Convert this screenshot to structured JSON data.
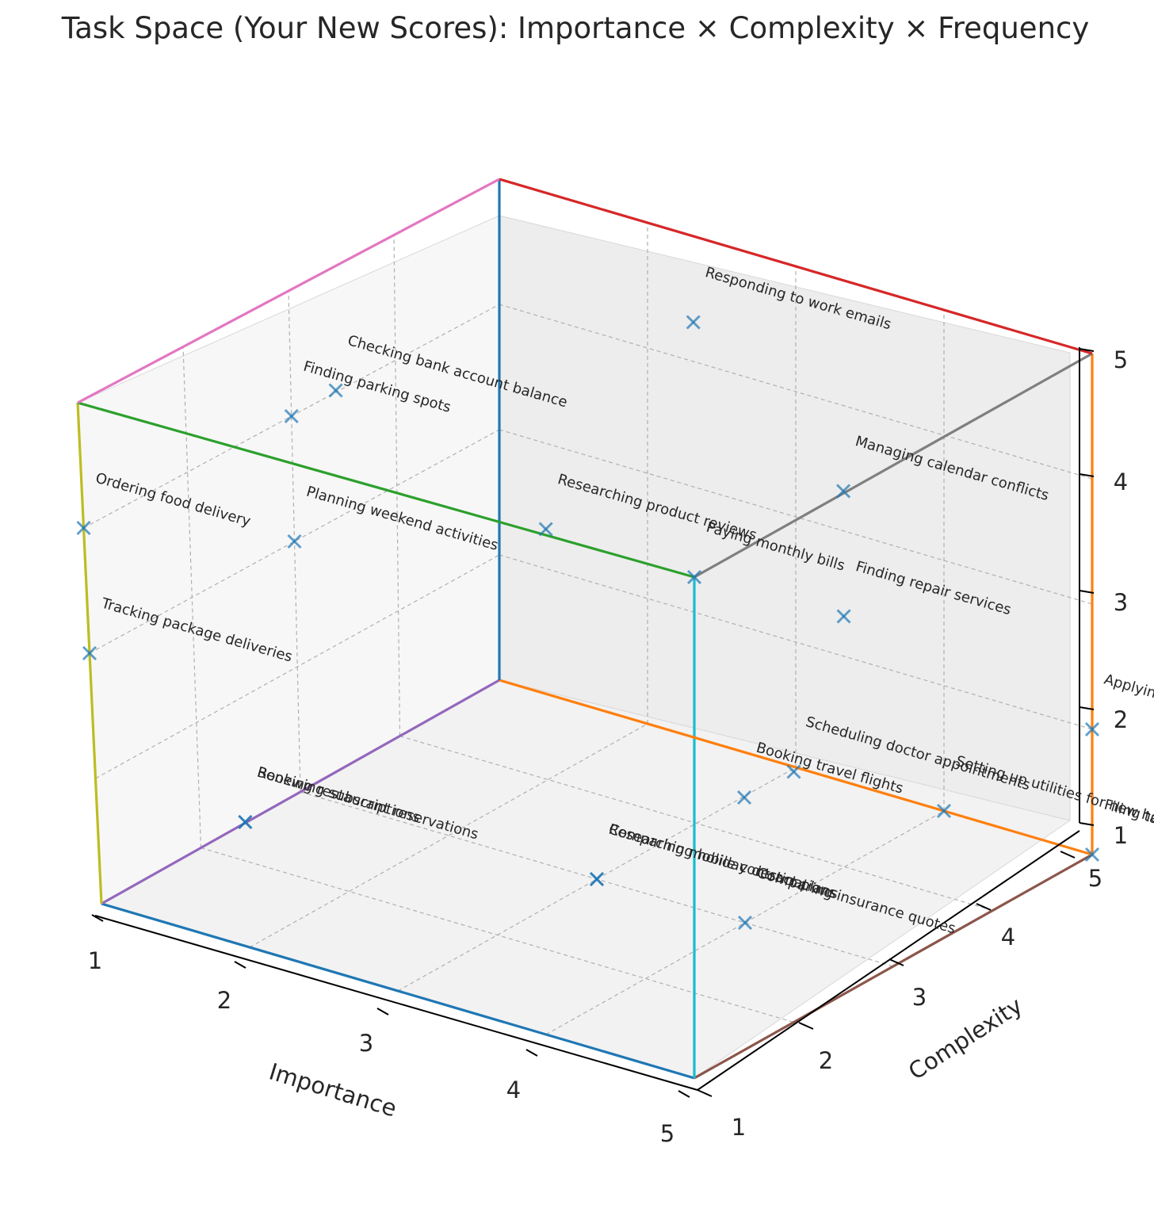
{
  "chart_data": {
    "type": "scatter",
    "title": "Task Space (Your New Scores): Importance × Complexity × Frequency",
    "xlabel": "Importance",
    "ylabel": "Complexity",
    "zlabel": "",
    "xlim": [
      1,
      5
    ],
    "ylim": [
      1,
      5
    ],
    "zlim": [
      1,
      5
    ],
    "x_ticks": [
      "1",
      "2",
      "3",
      "4",
      "5"
    ],
    "y_ticks": [
      "1",
      "2",
      "3",
      "4",
      "5"
    ],
    "z_ticks": [
      "1",
      "2",
      "3",
      "4",
      "5"
    ],
    "grid": true,
    "marker": "x",
    "marker_color": "#1f77b4",
    "points": [
      {
        "label": "Responding to work emails",
        "x": 3,
        "y": 4,
        "z": 5
      },
      {
        "label": "Checking bank account balance",
        "x": 2,
        "y": 2,
        "z": 5
      },
      {
        "label": "Managing calendar conflicts",
        "x": 4,
        "y": 4,
        "z": 4
      },
      {
        "label": "Finding parking spots",
        "x": 1,
        "y": 3,
        "z": 4
      },
      {
        "label": "Ordering food delivery",
        "x": 1,
        "y": 1,
        "z": 4
      },
      {
        "label": "Paying monthly bills",
        "x": 5,
        "y": 1,
        "z": 5
      },
      {
        "label": "Planning weekend activities",
        "x": 1,
        "y": 3,
        "z": 3
      },
      {
        "label": "Researching product reviews",
        "x": 2,
        "y": 4,
        "z": 3
      },
      {
        "label": "Scheduling doctor appointments",
        "x": 5,
        "y": 2,
        "z": 3
      },
      {
        "label": "Tracking package deliveries",
        "x": 1,
        "y": 1,
        "z": 3
      },
      {
        "label": "Finding repair services",
        "x": 4,
        "y": 4,
        "z": 3
      },
      {
        "label": "Booking travel flights",
        "x": 4,
        "y": 3,
        "z": 2
      },
      {
        "label": "Booking restaurant reservations",
        "x": 2,
        "y": 1,
        "z": 2
      },
      {
        "label": "Renewing subscriptions",
        "x": 2,
        "y": 1,
        "z": 2
      },
      {
        "label": "Researching holiday destinations",
        "x": 3,
        "y": 3,
        "z": 1
      },
      {
        "label": "Comparing mobile contract plans",
        "x": 3,
        "y": 3,
        "z": 1
      },
      {
        "label": "Comparing insurance quotes",
        "x": 4,
        "y": 3,
        "z": 1
      },
      {
        "label": "Setting up utilities for new home",
        "x": 4,
        "y": 5,
        "z": 1
      },
      {
        "label": "Filing tax returns",
        "x": 5,
        "y": 5,
        "z": 1
      },
      {
        "label": "Applying fo",
        "x": 5,
        "y": 5,
        "z": 2
      }
    ],
    "cube_edges": [
      {
        "from": [
          1,
          1,
          1
        ],
        "to": [
          5,
          1,
          1
        ],
        "color": "#1f77b4"
      },
      {
        "from": [
          1,
          1,
          1
        ],
        "to": [
          1,
          5,
          1
        ],
        "color": "#9467bd"
      },
      {
        "from": [
          1,
          1,
          1
        ],
        "to": [
          1,
          1,
          5
        ],
        "color": "#bcbd22"
      },
      {
        "from": [
          5,
          1,
          1
        ],
        "to": [
          5,
          5,
          1
        ],
        "color": "#8c564b"
      },
      {
        "from": [
          5,
          1,
          1
        ],
        "to": [
          5,
          1,
          5
        ],
        "color": "#17becf"
      },
      {
        "from": [
          1,
          5,
          1
        ],
        "to": [
          5,
          5,
          1
        ],
        "color": "#ff7f0e"
      },
      {
        "from": [
          1,
          5,
          1
        ],
        "to": [
          1,
          5,
          5
        ],
        "color": "#1f77b4"
      },
      {
        "from": [
          1,
          1,
          5
        ],
        "to": [
          5,
          1,
          5
        ],
        "color": "#2ca02c"
      },
      {
        "from": [
          1,
          1,
          5
        ],
        "to": [
          1,
          5,
          5
        ],
        "color": "#e377c2"
      },
      {
        "from": [
          5,
          5,
          1
        ],
        "to": [
          5,
          5,
          5
        ],
        "color": "#ff7f0e"
      },
      {
        "from": [
          5,
          1,
          5
        ],
        "to": [
          5,
          5,
          5
        ],
        "color": "#7f7f7f"
      },
      {
        "from": [
          1,
          5,
          5
        ],
        "to": [
          5,
          5,
          5
        ],
        "color": "#d62728"
      }
    ]
  }
}
